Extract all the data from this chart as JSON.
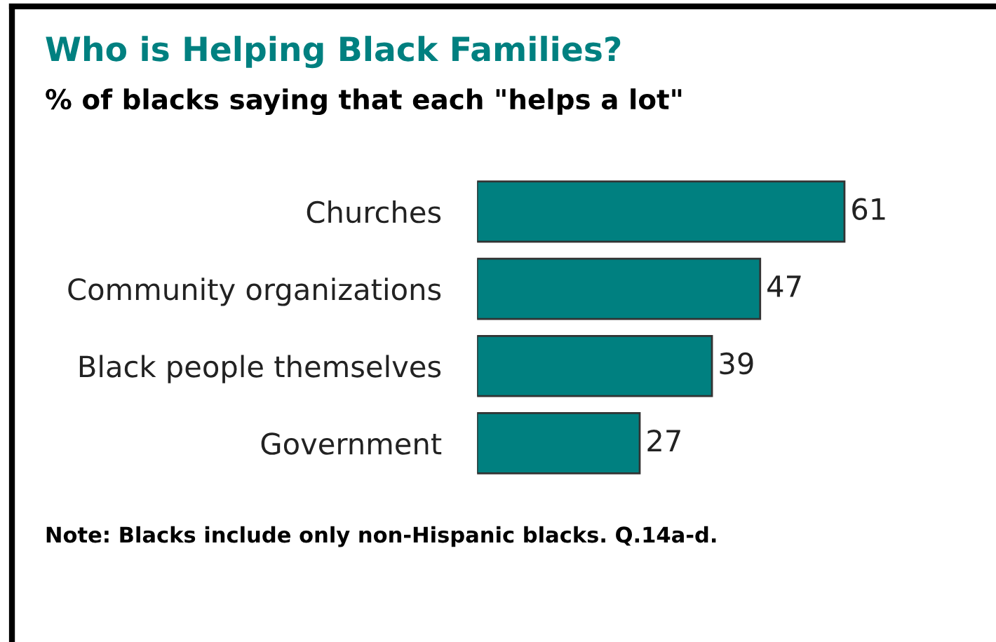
{
  "chart_data": {
    "type": "bar",
    "orientation": "horizontal",
    "title": "Who is Helping Black Families?",
    "subtitle": "% of blacks saying that each \"helps a lot\"",
    "categories": [
      "Churches",
      "Community organizations",
      "Black people themselves",
      "Government"
    ],
    "values": [
      61,
      47,
      39,
      27
    ],
    "color": "#008080",
    "data_labels": true,
    "annotations": [
      "Note: Blacks include only non-Hispanic blacks. Q.14a-d."
    ]
  }
}
